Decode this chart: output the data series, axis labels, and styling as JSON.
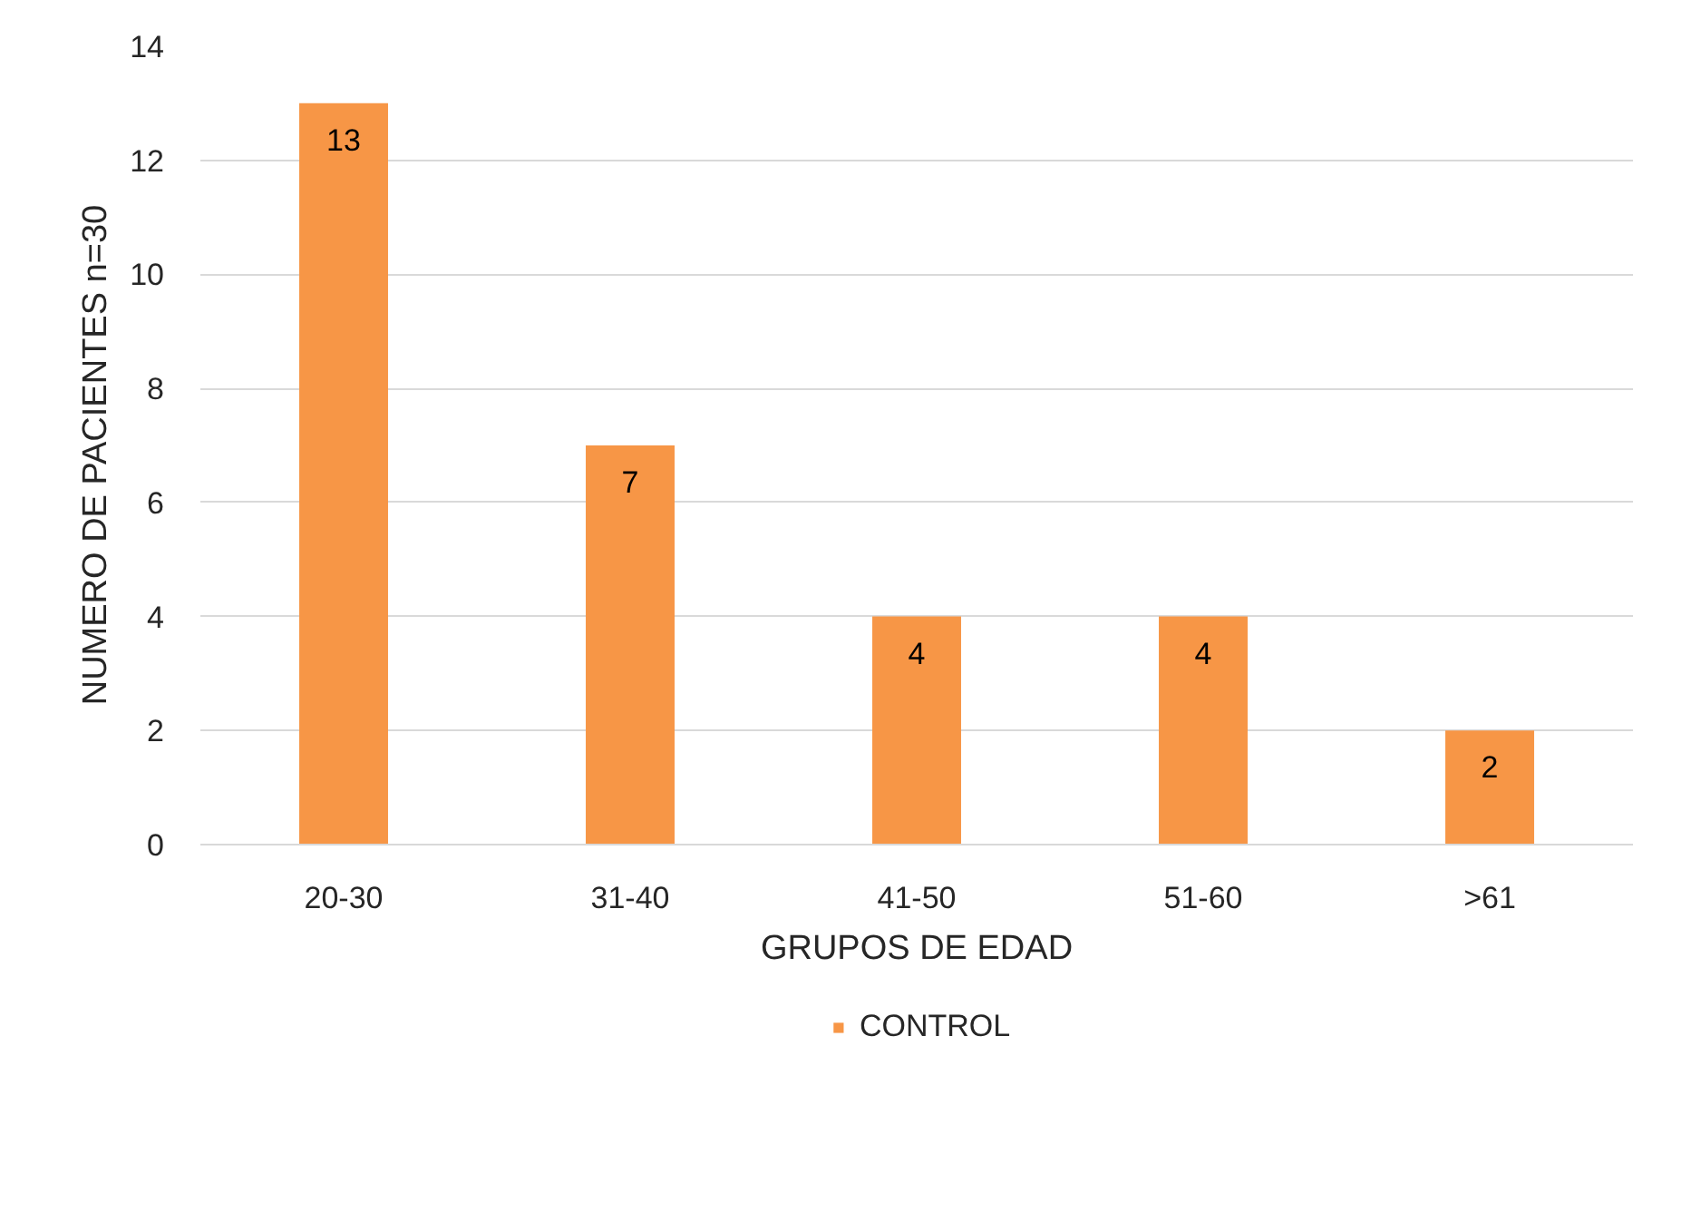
{
  "chart_data": {
    "type": "bar",
    "xlabel": "GRUPOS DE EDAD",
    "ylabel": "NUMERO DE PACIENTES   n=30",
    "categories": [
      "20-30",
      "31-40",
      "41-50",
      "51-60",
      ">61"
    ],
    "series": [
      {
        "name": "CONTROL",
        "color": "#f79646",
        "values": [
          13,
          7,
          4,
          4,
          2
        ]
      }
    ],
    "ylim": [
      0,
      14
    ],
    "yticks": [
      0,
      2,
      4,
      6,
      8,
      10,
      12,
      14
    ],
    "grid": "y",
    "legend": "bottom",
    "data_labels": true
  }
}
